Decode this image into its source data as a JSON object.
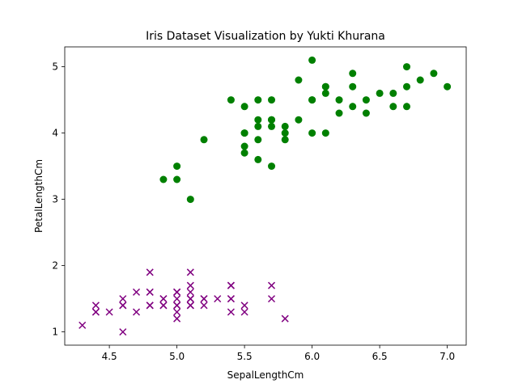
{
  "chart_data": {
    "type": "scatter",
    "title": "Iris Dataset Visualization by Yukti Khurana",
    "xlabel": "SepalLengthCm",
    "ylabel": "PetalLengthCm",
    "xlim": [
      4.17,
      7.14
    ],
    "ylim": [
      0.8,
      5.3
    ],
    "xticks": [
      4.5,
      5.0,
      5.5,
      6.0,
      6.5,
      7.0
    ],
    "xtick_labels": [
      "4.5",
      "5.0",
      "5.5",
      "6.0",
      "6.5",
      "7.0"
    ],
    "yticks": [
      1,
      2,
      3,
      4,
      5
    ],
    "ytick_labels": [
      "1",
      "2",
      "3",
      "4",
      "5"
    ],
    "grid": false,
    "series": [
      {
        "marker": "x",
        "color": "#800080",
        "points": [
          [
            5.1,
            1.4
          ],
          [
            4.9,
            1.4
          ],
          [
            4.7,
            1.3
          ],
          [
            4.6,
            1.5
          ],
          [
            5.0,
            1.4
          ],
          [
            5.4,
            1.7
          ],
          [
            4.6,
            1.4
          ],
          [
            5.0,
            1.5
          ],
          [
            4.4,
            1.4
          ],
          [
            4.9,
            1.5
          ],
          [
            5.4,
            1.5
          ],
          [
            4.8,
            1.6
          ],
          [
            4.8,
            1.4
          ],
          [
            4.3,
            1.1
          ],
          [
            5.8,
            1.2
          ],
          [
            5.7,
            1.5
          ],
          [
            5.4,
            1.3
          ],
          [
            5.1,
            1.4
          ],
          [
            5.7,
            1.7
          ],
          [
            5.1,
            1.5
          ],
          [
            5.4,
            1.7
          ],
          [
            5.1,
            1.5
          ],
          [
            4.6,
            1.0
          ],
          [
            5.1,
            1.7
          ],
          [
            4.8,
            1.9
          ],
          [
            5.0,
            1.6
          ],
          [
            5.0,
            1.6
          ],
          [
            5.2,
            1.5
          ],
          [
            5.2,
            1.4
          ],
          [
            4.7,
            1.6
          ],
          [
            4.8,
            1.6
          ],
          [
            5.4,
            1.5
          ],
          [
            5.2,
            1.5
          ],
          [
            5.5,
            1.4
          ],
          [
            4.9,
            1.5
          ],
          [
            5.0,
            1.2
          ],
          [
            5.5,
            1.3
          ],
          [
            4.9,
            1.4
          ],
          [
            4.4,
            1.3
          ],
          [
            5.1,
            1.5
          ],
          [
            5.0,
            1.3
          ],
          [
            4.5,
            1.3
          ],
          [
            4.4,
            1.3
          ],
          [
            5.0,
            1.6
          ],
          [
            5.1,
            1.9
          ],
          [
            4.8,
            1.4
          ],
          [
            5.1,
            1.6
          ],
          [
            4.6,
            1.4
          ],
          [
            5.3,
            1.5
          ],
          [
            5.0,
            1.4
          ]
        ]
      },
      {
        "marker": "o",
        "color": "#008000",
        "points": [
          [
            7.0,
            4.7
          ],
          [
            6.4,
            4.5
          ],
          [
            6.9,
            4.9
          ],
          [
            5.5,
            4.0
          ],
          [
            6.5,
            4.6
          ],
          [
            5.7,
            4.5
          ],
          [
            6.3,
            4.7
          ],
          [
            4.9,
            3.3
          ],
          [
            6.6,
            4.6
          ],
          [
            5.2,
            3.9
          ],
          [
            5.0,
            3.5
          ],
          [
            5.9,
            4.2
          ],
          [
            6.0,
            4.0
          ],
          [
            6.1,
            4.7
          ],
          [
            5.6,
            3.6
          ],
          [
            6.7,
            4.4
          ],
          [
            5.6,
            4.5
          ],
          [
            5.8,
            4.1
          ],
          [
            6.2,
            4.5
          ],
          [
            5.6,
            3.9
          ],
          [
            5.9,
            4.8
          ],
          [
            6.1,
            4.0
          ],
          [
            6.3,
            4.9
          ],
          [
            6.1,
            4.7
          ],
          [
            6.4,
            4.3
          ],
          [
            6.6,
            4.4
          ],
          [
            6.8,
            4.8
          ],
          [
            6.7,
            5.0
          ],
          [
            6.0,
            4.5
          ],
          [
            5.7,
            3.5
          ],
          [
            5.5,
            3.8
          ],
          [
            5.5,
            3.7
          ],
          [
            5.8,
            3.9
          ],
          [
            6.0,
            5.1
          ],
          [
            5.4,
            4.5
          ],
          [
            6.0,
            4.5
          ],
          [
            6.7,
            4.7
          ],
          [
            6.3,
            4.4
          ],
          [
            5.6,
            4.1
          ],
          [
            5.5,
            4.0
          ],
          [
            5.5,
            4.4
          ],
          [
            6.1,
            4.6
          ],
          [
            5.8,
            4.0
          ],
          [
            5.0,
            3.3
          ],
          [
            5.6,
            4.2
          ],
          [
            5.7,
            4.2
          ],
          [
            5.7,
            4.2
          ],
          [
            6.2,
            4.3
          ],
          [
            5.1,
            3.0
          ],
          [
            5.7,
            4.1
          ]
        ]
      }
    ]
  }
}
